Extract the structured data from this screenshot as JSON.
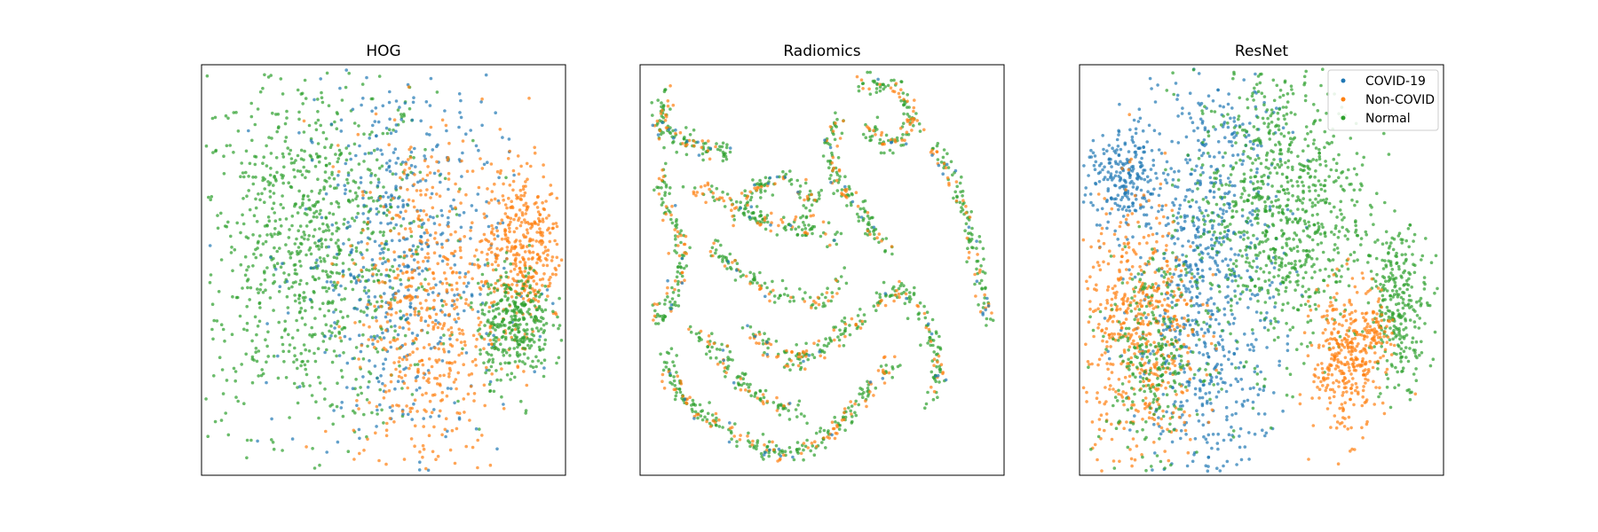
{
  "chart_data": [
    {
      "type": "scatter",
      "title": "HOG",
      "xlabel": "",
      "ylabel": "",
      "grid": false,
      "axis_ticks": false,
      "series": [
        {
          "name": "COVID-19",
          "color": "#1f77b4"
        },
        {
          "name": "Non-COVID",
          "color": "#ff7f0e"
        },
        {
          "name": "Normal",
          "color": "#2ca02c"
        }
      ],
      "clusters": [
        {
          "series": "Normal",
          "center": [
            0.3,
            0.55
          ],
          "spread": [
            0.17,
            0.22
          ],
          "density": 0.9
        },
        {
          "series": "COVID-19",
          "center": [
            0.55,
            0.52
          ],
          "spread": [
            0.14,
            0.25
          ],
          "density": 0.5
        },
        {
          "series": "Non-COVID",
          "center": [
            0.62,
            0.4
          ],
          "spread": [
            0.1,
            0.22
          ],
          "density": 0.5
        },
        {
          "series": "Non-COVID",
          "center": [
            0.88,
            0.56
          ],
          "spread": [
            0.055,
            0.1
          ],
          "density": 0.35
        },
        {
          "series": "Normal",
          "center": [
            0.86,
            0.37
          ],
          "spread": [
            0.05,
            0.07
          ],
          "density": 0.3
        }
      ]
    },
    {
      "type": "scatter",
      "title": "Radiomics",
      "xlabel": "",
      "ylabel": "",
      "grid": false,
      "axis_ticks": false,
      "series": [
        {
          "name": "COVID-19",
          "color": "#1f77b4"
        },
        {
          "name": "Non-COVID",
          "color": "#ff7f0e"
        },
        {
          "name": "Normal",
          "color": "#2ca02c"
        }
      ],
      "clusters": [
        {
          "series": "Normal",
          "shape": "strands",
          "density": 1.0
        },
        {
          "series": "Non-COVID",
          "shape": "strands",
          "density": 0.4
        },
        {
          "series": "COVID-19",
          "shape": "strands",
          "density": 0.08
        }
      ]
    },
    {
      "type": "scatter",
      "title": "ResNet",
      "xlabel": "",
      "ylabel": "",
      "grid": false,
      "axis_ticks": false,
      "legend": {
        "position": "top-right",
        "entries": [
          "COVID-19",
          "Non-COVID",
          "Normal"
        ]
      },
      "series": [
        {
          "name": "COVID-19",
          "color": "#1f77b4"
        },
        {
          "name": "Non-COVID",
          "color": "#ff7f0e"
        },
        {
          "name": "Normal",
          "color": "#2ca02c"
        }
      ],
      "clusters": [
        {
          "series": "COVID-19",
          "center": [
            0.35,
            0.5
          ],
          "spread": [
            0.1,
            0.3
          ],
          "density": 0.8
        },
        {
          "series": "COVID-19",
          "center": [
            0.12,
            0.72
          ],
          "spread": [
            0.05,
            0.06
          ],
          "density": 0.2
        },
        {
          "series": "Normal",
          "center": [
            0.55,
            0.65
          ],
          "spread": [
            0.12,
            0.18
          ],
          "density": 0.8
        },
        {
          "series": "Non-COVID",
          "center": [
            0.17,
            0.35
          ],
          "spread": [
            0.08,
            0.16
          ],
          "density": 0.5
        },
        {
          "series": "Normal",
          "center": [
            0.2,
            0.3
          ],
          "spread": [
            0.07,
            0.12
          ],
          "density": 0.25
        },
        {
          "series": "Non-COVID",
          "center": [
            0.73,
            0.28
          ],
          "spread": [
            0.045,
            0.09
          ],
          "density": 0.3
        },
        {
          "series": "Normal",
          "center": [
            0.88,
            0.41
          ],
          "spread": [
            0.04,
            0.09
          ],
          "density": 0.25
        },
        {
          "series": "Non-COVID",
          "center": [
            0.82,
            0.36
          ],
          "spread": [
            0.02,
            0.05
          ],
          "density": 0.06
        }
      ]
    }
  ]
}
